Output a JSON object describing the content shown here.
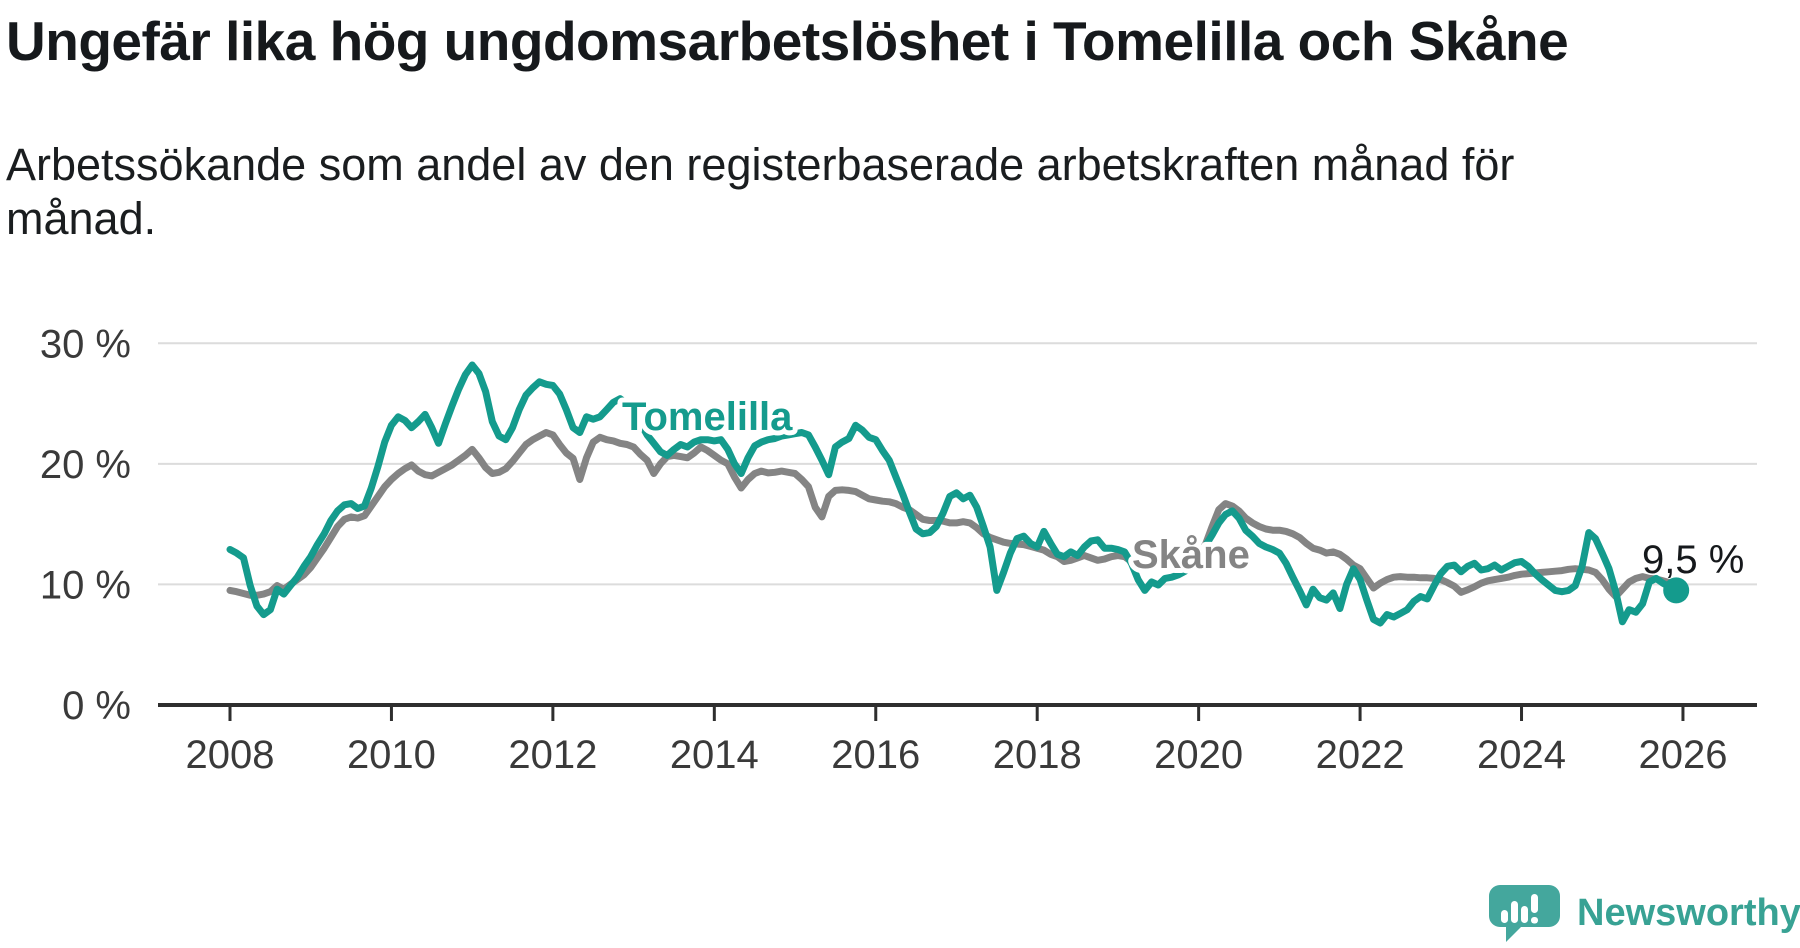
{
  "header": {
    "title": "Ungefär lika hög ungdomsarbetslöshet i Tomelilla och Skåne",
    "subtitle_lines": [
      "Arbetssökande som andel av den registerbaserade arbetskraften månad för",
      "månad."
    ]
  },
  "chart_data": {
    "type": "line",
    "unit": "%",
    "x_domain": {
      "start": "2008-01",
      "end": "2025-12",
      "step": "month"
    },
    "ylim": [
      0,
      30
    ],
    "grid": true,
    "grid_color": "#dcdcdc",
    "axis_color": "#2e2e2e",
    "axis_text_color": "#3a3a3a",
    "y_ticks": [
      {
        "value": 0,
        "label": "0 %"
      },
      {
        "value": 10,
        "label": "10 %"
      },
      {
        "value": 20,
        "label": "20 %"
      },
      {
        "value": 30,
        "label": "30 %"
      }
    ],
    "x_ticks": [
      {
        "year": 2008,
        "label": "2008"
      },
      {
        "year": 2010,
        "label": "2010"
      },
      {
        "year": 2012,
        "label": "2012"
      },
      {
        "year": 2014,
        "label": "2014"
      },
      {
        "year": 2016,
        "label": "2016"
      },
      {
        "year": 2018,
        "label": "2018"
      },
      {
        "year": 2020,
        "label": "2020"
      },
      {
        "year": 2022,
        "label": "2022"
      },
      {
        "year": 2024,
        "label": "2024"
      },
      {
        "year": 2026,
        "label": "2026"
      }
    ],
    "series": [
      {
        "id": "tomelilla",
        "name": "Tomelilla",
        "color": "#149b8d",
        "values": [
          12.9,
          12.6,
          12.2,
          9.9,
          8.2,
          7.5,
          7.9,
          9.6,
          9.2,
          9.9,
          10.6,
          11.5,
          12.3,
          13.3,
          14.2,
          15.3,
          16.1,
          16.6,
          16.7,
          16.3,
          16.5,
          18.0,
          19.8,
          21.8,
          23.2,
          23.9,
          23.6,
          23.0,
          23.5,
          24.1,
          23.0,
          21.7,
          23.3,
          24.8,
          26.2,
          27.4,
          28.2,
          27.5,
          26.0,
          23.5,
          22.3,
          22.0,
          23.0,
          24.5,
          25.7,
          26.3,
          26.8,
          26.6,
          26.5,
          25.8,
          24.5,
          23.0,
          22.6,
          23.9,
          23.7,
          23.9,
          24.5,
          25.1,
          25.4,
          25.0,
          24.3,
          23.4,
          22.4,
          21.7,
          21.0,
          20.7,
          21.2,
          21.6,
          21.4,
          21.8,
          22.0,
          22.0,
          21.9,
          22.0,
          21.2,
          20.0,
          19.2,
          20.5,
          21.5,
          21.8,
          22.0,
          22.1,
          22.3,
          22.4,
          22.5,
          22.6,
          22.4,
          21.4,
          20.3,
          19.1,
          21.4,
          21.8,
          22.1,
          23.2,
          22.8,
          22.2,
          22.0,
          21.1,
          20.3,
          18.9,
          17.5,
          16.0,
          14.6,
          14.2,
          14.3,
          14.8,
          15.9,
          17.3,
          17.6,
          17.1,
          17.4,
          16.4,
          14.8,
          13.1,
          9.5,
          11.0,
          12.6,
          13.8,
          14.0,
          13.4,
          13.1,
          14.4,
          13.4,
          12.5,
          12.3,
          12.7,
          12.4,
          13.1,
          13.6,
          13.7,
          13.0,
          13.0,
          12.9,
          12.7,
          11.75,
          10.4,
          9.5,
          10.2,
          9.95,
          10.5,
          10.6,
          10.8,
          11.1,
          11.6,
          12.4,
          13.2,
          14.1,
          15.1,
          15.8,
          16.1,
          15.5,
          14.5,
          14.0,
          13.4,
          13.1,
          12.9,
          12.6,
          11.75,
          10.6,
          9.5,
          8.3,
          9.6,
          8.9,
          8.7,
          9.3,
          8.0,
          10.0,
          11.3,
          10.4,
          8.7,
          7.1,
          6.8,
          7.5,
          7.3,
          7.6,
          7.9,
          8.6,
          9.0,
          8.8,
          9.9,
          10.9,
          11.5,
          11.6,
          11.05,
          11.5,
          11.75,
          11.2,
          11.3,
          11.6,
          11.2,
          11.5,
          11.8,
          11.9,
          11.5,
          10.9,
          10.4,
          9.95,
          9.5,
          9.4,
          9.5,
          9.9,
          11.5,
          14.3,
          13.8,
          12.6,
          11.3,
          9.4,
          6.9,
          7.9,
          7.7,
          8.4,
          10.2,
          10.5,
          10.1,
          9.8,
          9.5
        ]
      },
      {
        "id": "skane",
        "name": "Skåne",
        "color": "#848484",
        "values": [
          9.5,
          9.4,
          9.25,
          9.1,
          9.1,
          9.2,
          9.4,
          9.9,
          9.6,
          10.0,
          10.4,
          10.8,
          11.4,
          12.2,
          13.0,
          13.9,
          14.8,
          15.4,
          15.6,
          15.5,
          15.7,
          16.5,
          17.3,
          18.1,
          18.7,
          19.2,
          19.6,
          19.9,
          19.4,
          19.1,
          19.0,
          19.3,
          19.6,
          19.9,
          20.3,
          20.7,
          21.2,
          20.5,
          19.7,
          19.2,
          19.3,
          19.6,
          20.2,
          20.9,
          21.6,
          22.0,
          22.3,
          22.6,
          22.4,
          21.6,
          20.9,
          20.45,
          18.7,
          20.5,
          21.8,
          22.2,
          22.0,
          21.9,
          21.7,
          21.6,
          21.4,
          20.8,
          20.3,
          19.2,
          20.0,
          20.6,
          20.7,
          20.6,
          20.5,
          20.9,
          21.4,
          21.1,
          20.7,
          20.3,
          20.0,
          18.9,
          18.0,
          18.7,
          19.2,
          19.4,
          19.25,
          19.3,
          19.4,
          19.3,
          19.2,
          18.7,
          18.1,
          16.4,
          15.6,
          17.3,
          17.8,
          17.85,
          17.8,
          17.7,
          17.4,
          17.1,
          17.0,
          16.9,
          16.85,
          16.7,
          16.4,
          16.2,
          15.8,
          15.4,
          15.3,
          15.3,
          15.25,
          15.1,
          15.1,
          15.2,
          15.1,
          14.7,
          14.2,
          13.9,
          13.7,
          13.5,
          13.4,
          13.35,
          13.3,
          13.15,
          13.0,
          12.85,
          12.5,
          12.3,
          11.9,
          12.0,
          12.2,
          12.4,
          12.2,
          12.0,
          12.1,
          12.3,
          12.4,
          12.3,
          11.9,
          11.75,
          11.6,
          11.5,
          11.55,
          11.6,
          11.7,
          11.8,
          11.9,
          12.1,
          12.6,
          13.3,
          14.8,
          16.2,
          16.7,
          16.5,
          16.1,
          15.5,
          15.1,
          14.8,
          14.6,
          14.5,
          14.5,
          14.4,
          14.2,
          13.9,
          13.4,
          13.0,
          12.85,
          12.6,
          12.7,
          12.5,
          12.1,
          11.6,
          11.3,
          10.5,
          9.7,
          10.1,
          10.4,
          10.6,
          10.65,
          10.6,
          10.6,
          10.55,
          10.55,
          10.5,
          10.4,
          10.15,
          9.85,
          9.35,
          9.55,
          9.8,
          10.1,
          10.3,
          10.4,
          10.5,
          10.6,
          10.75,
          10.85,
          10.9,
          10.95,
          11.0,
          11.05,
          11.1,
          11.15,
          11.25,
          11.3,
          11.25,
          11.2,
          11.0,
          10.4,
          9.6,
          9.0,
          9.6,
          10.2,
          10.5,
          10.65,
          10.5,
          10.45,
          10.3,
          10.15,
          10.0
        ]
      }
    ],
    "end_annotation": {
      "series": "Tomelilla",
      "label": "9,5 %",
      "value": 9.5
    }
  },
  "footer": {
    "brand": "Newsworthy"
  }
}
